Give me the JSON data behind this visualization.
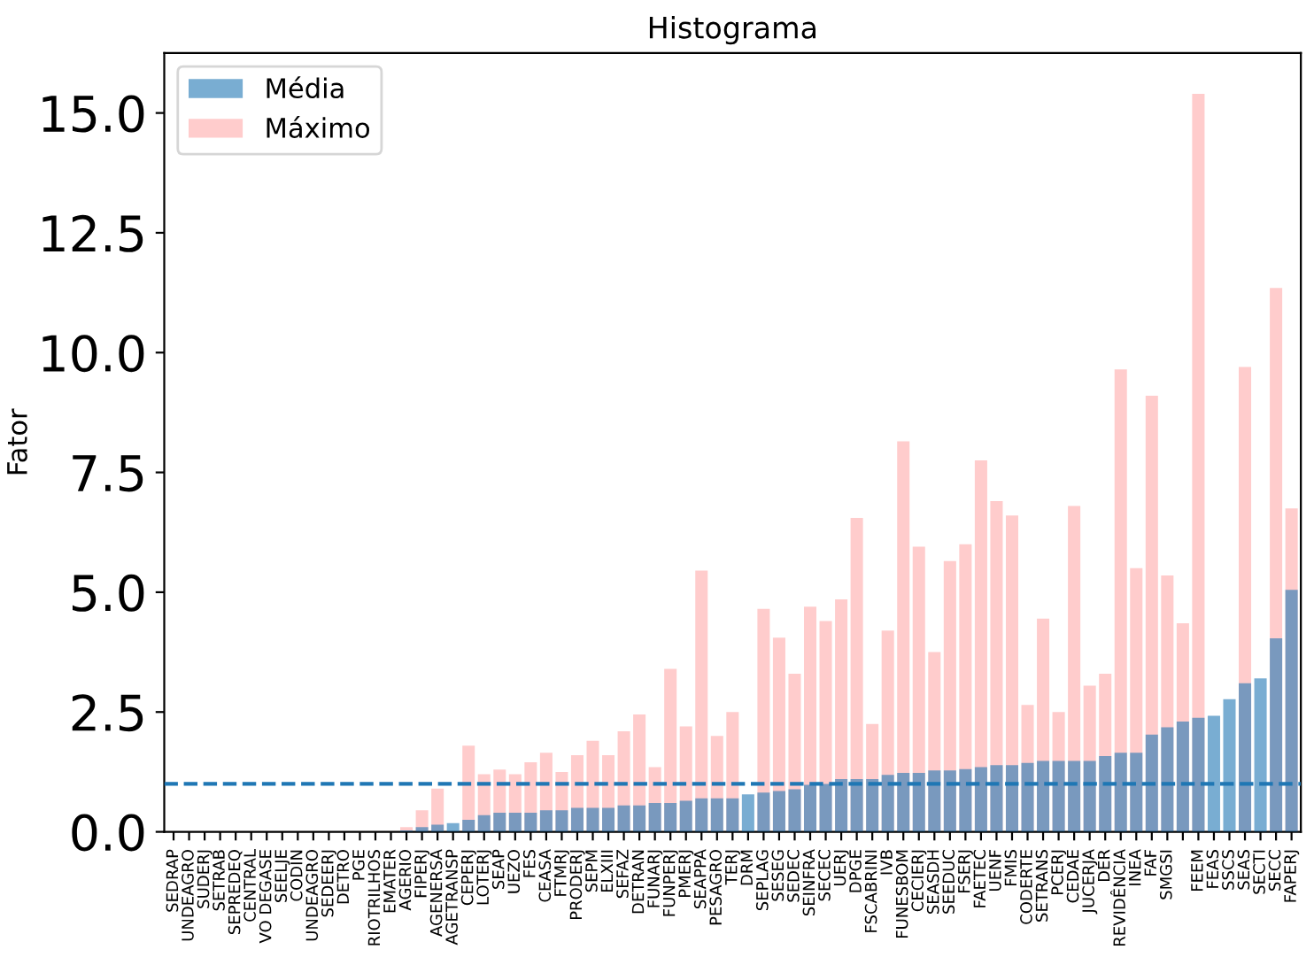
{
  "chart_data": {
    "type": "bar",
    "title": "Histograma",
    "ylabel": "Fator",
    "categories": [
      "SEDRAP",
      "UNDEAGRO",
      "SUDERJ",
      "SETRAB",
      "SEPREDEQ",
      "CENTRAL",
      "VO DEGASE",
      "SEELJE",
      "CODIN",
      "UNDEAGRO",
      "SEDEERJ",
      "DETRO",
      "PGE",
      "RIOTRILHOS",
      "EMATER",
      "AGERIO",
      "FIPERJ",
      "AGENERSA",
      "AGETRANSP",
      "CEPERJ",
      "LOTERJ",
      "SEAP",
      "UEZO",
      "FES",
      "CEASA",
      "FTMRJ",
      "PRODERJ",
      "SEPM",
      "ELXIII",
      "SEFAZ",
      "DETRAN",
      "FUNARJ",
      "FUNPERJ",
      "PMERJ",
      "SEAPPA",
      "PESAGRO",
      "TERJ",
      "DRM",
      "SEPLAG",
      "SESEG",
      "SEDEC",
      "SEINFRA",
      "SECEC",
      "UERJ",
      "DPGE",
      "FSCABRINI",
      "IVB",
      "FUNESBOM",
      "CECIERJ",
      "SEASDH",
      "SEEDUC",
      "FSERJ",
      "FAETEC",
      "UENF",
      "FMIS",
      "CODERTE",
      "SETRANS",
      "PCERJ",
      "CEDAE",
      "JUCERJA",
      "DER",
      "REVIDÊNCIA",
      "INEA",
      "FAF",
      "SMGSI",
      null,
      "FEEM",
      "FEAS",
      "SSCS",
      "SEAS",
      "SECTI",
      "SECC",
      "FAPERJ"
    ],
    "series": [
      {
        "name": "Média",
        "color": "#1f77b4",
        "values": [
          0,
          0,
          0,
          0,
          0,
          0,
          0,
          0,
          0,
          0,
          0,
          0,
          0,
          0,
          0,
          0.03,
          0.1,
          0.15,
          0.18,
          0.25,
          0.35,
          0.4,
          0.4,
          0.4,
          0.45,
          0.45,
          0.5,
          0.5,
          0.5,
          0.55,
          0.55,
          0.6,
          0.6,
          0.65,
          0.7,
          0.7,
          0.7,
          0.78,
          0.82,
          0.85,
          0.89,
          0.98,
          1.0,
          1.1,
          1.1,
          1.1,
          1.19,
          1.23,
          1.23,
          1.28,
          1.28,
          1.31,
          1.35,
          1.39,
          1.39,
          1.44,
          1.48,
          1.48,
          1.48,
          1.48,
          1.58,
          1.65,
          1.65,
          2.03,
          2.18,
          2.3,
          2.38,
          2.42,
          2.77,
          3.1,
          3.2,
          4.04,
          5.05
        ]
      },
      {
        "name": "Máximo",
        "color": "#ffcccc",
        "values": [
          0,
          0,
          0,
          0,
          0,
          0,
          0,
          0,
          0,
          0,
          0,
          0,
          0,
          0,
          0,
          0.1,
          0.45,
          0.9,
          null,
          1.8,
          1.2,
          1.3,
          1.2,
          1.45,
          1.65,
          1.25,
          1.6,
          1.9,
          1.6,
          2.1,
          2.45,
          1.35,
          3.4,
          2.2,
          5.45,
          2.0,
          2.5,
          null,
          4.65,
          4.05,
          3.3,
          4.7,
          4.4,
          4.85,
          6.55,
          2.25,
          4.2,
          8.15,
          5.95,
          3.75,
          5.65,
          6.0,
          7.75,
          6.9,
          6.6,
          2.65,
          4.45,
          2.5,
          6.8,
          3.05,
          3.3,
          9.65,
          5.5,
          9.1,
          5.35,
          4.35,
          15.4,
          null,
          null,
          9.7,
          null,
          11.35,
          6.75
        ]
      }
    ],
    "ylim": [
      0,
      16.25
    ],
    "yticks": [
      {
        "value": 0,
        "label": "0.0"
      },
      {
        "value": 2.5,
        "label": "2.5"
      },
      {
        "value": 5,
        "label": "5.0"
      },
      {
        "value": 7.5,
        "label": "7.5"
      },
      {
        "value": 10,
        "label": "10.0"
      },
      {
        "value": 12.5,
        "label": "12.5"
      },
      {
        "value": 15,
        "label": "15.0"
      }
    ],
    "ref_lines": [
      {
        "axis": "y",
        "value": 1.0,
        "color": "#1f77b4",
        "line_style": "dashed"
      }
    ],
    "legend": "top left",
    "grid": false
  }
}
